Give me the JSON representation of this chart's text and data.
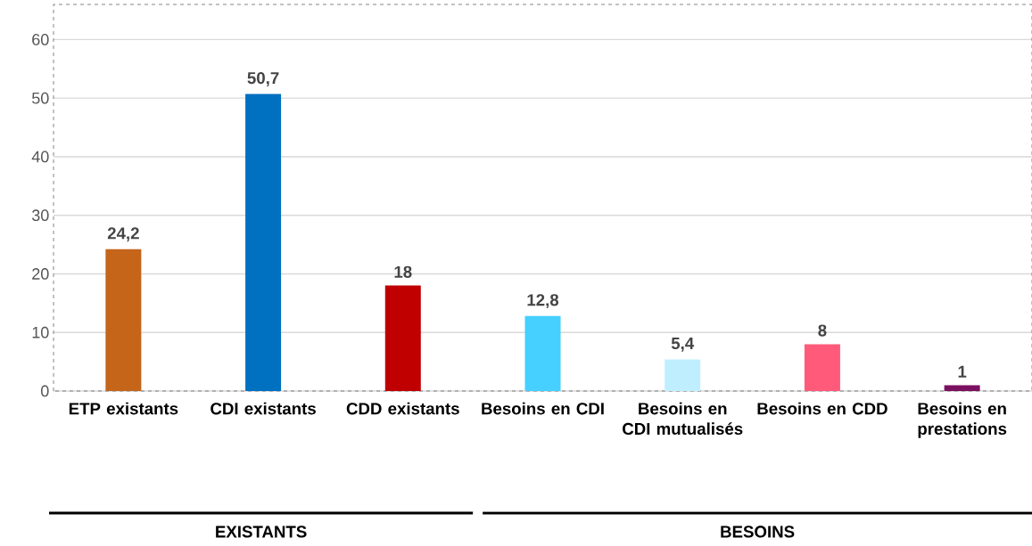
{
  "chart_data": {
    "type": "bar",
    "categories": [
      "ETP existants",
      "CDI existants",
      "CDD existants",
      "Besoins en CDI",
      "Besoins en CDI mutualisés",
      "Besoins en CDD",
      "Besoins en prestations"
    ],
    "values": [
      24.2,
      50.7,
      18,
      12.8,
      5.4,
      8,
      1
    ],
    "colors": [
      "#c5651a",
      "#0070c0",
      "#c00000",
      "#45d0ff",
      "#bfefff",
      "#ff5a7a",
      "#7b1060"
    ],
    "value_labels": [
      "24,2",
      "50,7",
      "18",
      "12,8",
      "5,4",
      "8",
      "1"
    ],
    "ylim": [
      0,
      66
    ],
    "yticks": [
      0,
      10,
      20,
      30,
      40,
      50,
      60
    ],
    "grid": "y",
    "annotations": [
      "EXISTANTS",
      "BESOINS"
    ]
  }
}
